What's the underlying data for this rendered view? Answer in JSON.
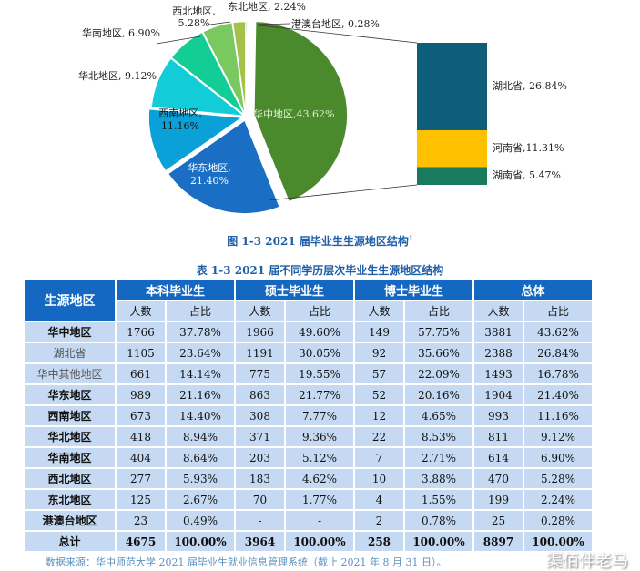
{
  "chart_data": {
    "type": "pie",
    "title": "图 1-3  2021 届毕业生生源地区结构",
    "title_sup": "1",
    "slices": [
      {
        "name": "港澳台地区",
        "value": 0.28,
        "label": "港澳台地区, 0.28%",
        "color": "#1a5a8a"
      },
      {
        "name": "华中地区",
        "value": 43.62,
        "label": "华中地区,43.62%",
        "color": "#4a8a2c"
      },
      {
        "name": "华东地区",
        "value": 21.4,
        "label": "华东地区, 21.40%",
        "color": "#1a6fc4"
      },
      {
        "name": "西南地区",
        "value": 11.16,
        "label": "西南地区, 11.16%",
        "color": "#0aa0d8"
      },
      {
        "name": "华北地区",
        "value": 9.12,
        "label": "华北地区, 9.12%",
        "color": "#12ccd8"
      },
      {
        "name": "华南地区",
        "value": 6.9,
        "label": "华南地区, 6.90%",
        "color": "#14cc96"
      },
      {
        "name": "西北地区",
        "value": 5.28,
        "label": "西北地区, 5.28%",
        "color": "#7ac860"
      },
      {
        "name": "东北地区",
        "value": 2.24,
        "label": "东北地区, 2.24%",
        "color": "#a4c24a"
      }
    ],
    "breakdown": [
      {
        "name": "湖北省",
        "value": 26.84,
        "label": "湖北省, 26.84%",
        "color": "#0e5e7a"
      },
      {
        "name": "河南省",
        "value": 11.31,
        "label": "河南省,11.31%",
        "color": "#ffc000"
      },
      {
        "name": "湖南省",
        "value": 5.47,
        "label": "湖南省, 5.47%",
        "color": "#1a7a5e"
      }
    ]
  },
  "table": {
    "title": "表 1-3  2021 届不同学历层次毕业生生源地区结构",
    "col0": "生源地区",
    "groups": [
      "本科毕业生",
      "硕士毕业生",
      "博士毕业生",
      "总体"
    ],
    "sub": [
      "人数",
      "占比"
    ],
    "rows": [
      {
        "name": "华中地区",
        "bold": true,
        "cells": [
          "1766",
          "37.78%",
          "1966",
          "49.60%",
          "149",
          "57.75%",
          "3881",
          "43.62%"
        ]
      },
      {
        "name": "湖北省",
        "bold": false,
        "cells": [
          "1105",
          "23.64%",
          "1191",
          "30.05%",
          "92",
          "35.66%",
          "2388",
          "26.84%"
        ]
      },
      {
        "name": "华中其他地区",
        "bold": false,
        "cells": [
          "661",
          "14.14%",
          "775",
          "19.55%",
          "57",
          "22.09%",
          "1493",
          "16.78%"
        ]
      },
      {
        "name": "华东地区",
        "bold": true,
        "cells": [
          "989",
          "21.16%",
          "863",
          "21.77%",
          "52",
          "20.16%",
          "1904",
          "21.40%"
        ]
      },
      {
        "name": "西南地区",
        "bold": true,
        "cells": [
          "673",
          "14.40%",
          "308",
          "7.77%",
          "12",
          "4.65%",
          "993",
          "11.16%"
        ]
      },
      {
        "name": "华北地区",
        "bold": true,
        "cells": [
          "418",
          "8.94%",
          "371",
          "9.36%",
          "22",
          "8.53%",
          "811",
          "9.12%"
        ]
      },
      {
        "name": "华南地区",
        "bold": true,
        "cells": [
          "404",
          "8.64%",
          "203",
          "5.12%",
          "7",
          "2.71%",
          "614",
          "6.90%"
        ]
      },
      {
        "name": "西北地区",
        "bold": true,
        "cells": [
          "277",
          "5.93%",
          "183",
          "4.62%",
          "10",
          "3.88%",
          "470",
          "5.28%"
        ]
      },
      {
        "name": "东北地区",
        "bold": true,
        "cells": [
          "125",
          "2.67%",
          "70",
          "1.77%",
          "4",
          "1.55%",
          "199",
          "2.24%"
        ]
      },
      {
        "name": "港澳台地区",
        "bold": true,
        "cells": [
          "23",
          "0.49%",
          "-",
          "-",
          "2",
          "0.78%",
          "25",
          "0.28%"
        ]
      },
      {
        "name": "总计",
        "bold": true,
        "total": true,
        "cells": [
          "4675",
          "100.00%",
          "3964",
          "100.00%",
          "258",
          "100.00%",
          "8897",
          "100.00%"
        ]
      }
    ],
    "source": "数据来源：华中师范大学 2021 届毕业生就业信息管理系统（截止 2021 年 8 月 31 日）。"
  },
  "watermark": "渠佰伴老马"
}
